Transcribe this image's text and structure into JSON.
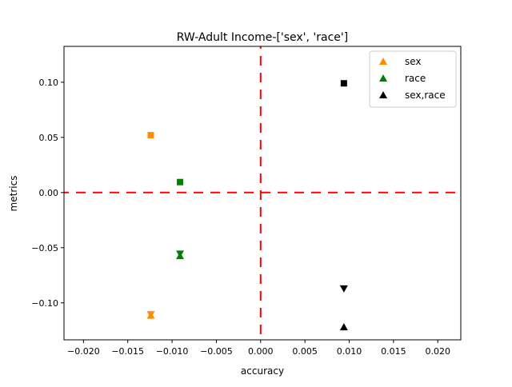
{
  "chart_data": {
    "type": "scatter",
    "title": "RW-Adult Income-['sex', 'race']",
    "xlabel": "accuracy",
    "ylabel": "metrics",
    "xlim": [
      -0.0222,
      0.0226
    ],
    "ylim": [
      -0.1335,
      0.1325
    ],
    "xticks": [
      -0.02,
      -0.015,
      -0.01,
      -0.005,
      0.0,
      0.005,
      0.01,
      0.015,
      0.02
    ],
    "xtick_labels": [
      "−0.020",
      "−0.015",
      "−0.010",
      "−0.005",
      "0.000",
      "0.005",
      "0.010",
      "0.015",
      "0.020"
    ],
    "yticks": [
      -0.1,
      -0.05,
      0.0,
      0.05,
      0.1
    ],
    "ytick_labels": [
      "−0.10",
      "−0.05",
      "0.00",
      "0.05",
      "0.10"
    ],
    "grid": false,
    "legend_position": "top-right",
    "reference_lines": [
      {
        "orientation": "horizontal",
        "value": 0.0,
        "color": "#ff0000",
        "style": "dashed"
      },
      {
        "orientation": "vertical",
        "value": 0.0,
        "color": "#ff0000",
        "style": "dashed"
      }
    ],
    "series": [
      {
        "name": "sex",
        "color": "#ff8c00",
        "points": [
          {
            "x": -0.0124,
            "y": 0.052,
            "marker": "square"
          },
          {
            "x": -0.0124,
            "y": -0.1105,
            "marker": "triangle-down"
          },
          {
            "x": -0.0124,
            "y": -0.1115,
            "marker": "triangle-up"
          }
        ]
      },
      {
        "name": "race",
        "color": "#008000",
        "points": [
          {
            "x": -0.0091,
            "y": 0.0095,
            "marker": "square"
          },
          {
            "x": -0.0091,
            "y": -0.0555,
            "marker": "triangle-down"
          },
          {
            "x": -0.0091,
            "y": -0.0575,
            "marker": "triangle-up"
          }
        ]
      },
      {
        "name": "sex,race",
        "color": "#000000",
        "points": [
          {
            "x": 0.0094,
            "y": 0.099,
            "marker": "square"
          },
          {
            "x": 0.0094,
            "y": -0.087,
            "marker": "triangle-down"
          },
          {
            "x": 0.0094,
            "y": -0.122,
            "marker": "triangle-up"
          }
        ]
      }
    ]
  }
}
